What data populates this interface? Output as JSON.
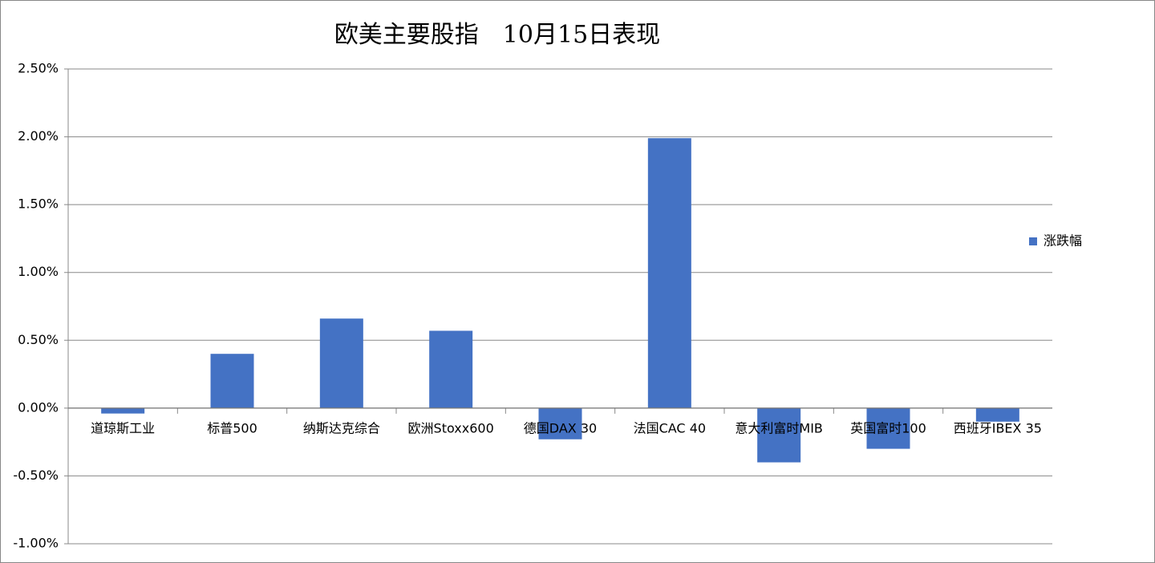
{
  "chart_data": {
    "type": "bar",
    "title": "欧美主要股指　10月15日表现",
    "categories": [
      "道琼斯工业",
      "标普500",
      "纳斯达克综合",
      "欧洲Stoxx600",
      "德国DAX 30",
      "法国CAC 40",
      "意大利富时MIB",
      "英国富时100",
      "西班牙IBEX 35"
    ],
    "series": [
      {
        "name": "涨跌幅",
        "color": "#4472c4",
        "values": [
          -0.04,
          0.4,
          0.66,
          0.57,
          -0.23,
          1.99,
          -0.4,
          -0.3,
          -0.1
        ]
      }
    ],
    "ylim": [
      -1.0,
      2.5
    ],
    "yticks": [
      {
        "value": -1.0,
        "label": "-1.00%"
      },
      {
        "value": -0.5,
        "label": "-0.50%"
      },
      {
        "value": 0,
        "label": "0.00%"
      },
      {
        "value": 0.5,
        "label": "0.50%"
      },
      {
        "value": 1.0,
        "label": "1.00%"
      },
      {
        "value": 1.5,
        "label": "1.50%"
      },
      {
        "value": 2.0,
        "label": "2.00%"
      },
      {
        "value": 2.5,
        "label": "2.50%"
      }
    ],
    "grid": true,
    "legend": "right"
  }
}
